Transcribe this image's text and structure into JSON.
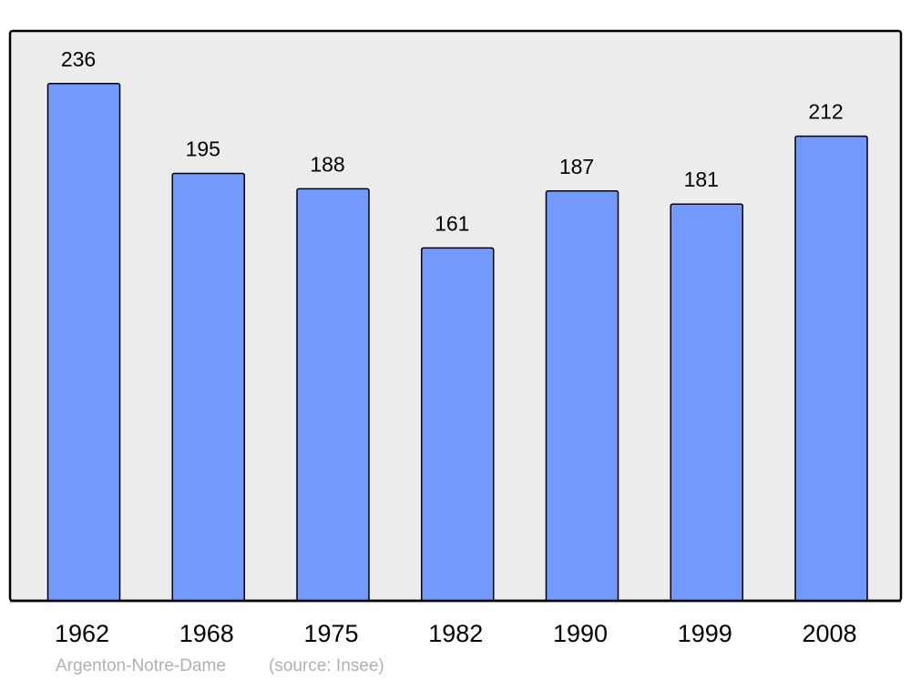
{
  "chart_data": {
    "type": "bar",
    "categories": [
      "1962",
      "1968",
      "1975",
      "1982",
      "1990",
      "1999",
      "2008"
    ],
    "values": [
      236,
      195,
      188,
      161,
      187,
      181,
      212
    ],
    "title": "",
    "xlabel": "",
    "ylabel": "",
    "ylim": [
      0,
      260
    ],
    "grid": false,
    "data_labels": true,
    "colors": {
      "bar": "#7399ff",
      "plot_background": "#ececec",
      "outline": "#000000",
      "footer_text": "#b0b0b0"
    }
  },
  "footer": {
    "place": "Argenton-Notre-Dame",
    "source": "(source: Insee)"
  }
}
